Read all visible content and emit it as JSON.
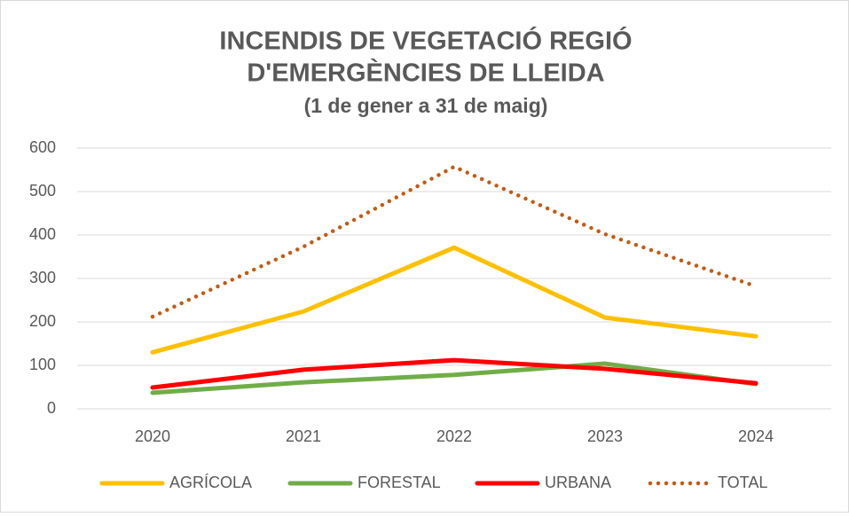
{
  "chart_data": {
    "type": "line",
    "title": [
      "INCENDIS DE VEGETACIÓ REGIÓ",
      "D'EMERGÈNCIES DE LLEIDA"
    ],
    "subtitle": "(1 de gener a 31 de maig)",
    "categories": [
      "2020",
      "2021",
      "2022",
      "2023",
      "2024"
    ],
    "series": [
      {
        "name": "AGRÍCOLA",
        "color": "#ffc000",
        "style": "solid",
        "values": [
          130,
          224,
          371,
          210,
          167
        ]
      },
      {
        "name": "FORESTAL",
        "color": "#70ad47",
        "style": "solid",
        "values": [
          37,
          61,
          78,
          104,
          57
        ]
      },
      {
        "name": "URBANA",
        "color": "#ff0000",
        "style": "solid",
        "values": [
          49,
          90,
          112,
          92,
          59
        ]
      },
      {
        "name": "TOTAL",
        "color": "#c55a11",
        "style": "dotted",
        "values": [
          212,
          373,
          557,
          402,
          282
        ]
      }
    ],
    "ylim": [
      0,
      600
    ],
    "yticks": [
      0,
      100,
      200,
      300,
      400,
      500,
      600
    ],
    "grid": true,
    "legend": "bottom"
  }
}
